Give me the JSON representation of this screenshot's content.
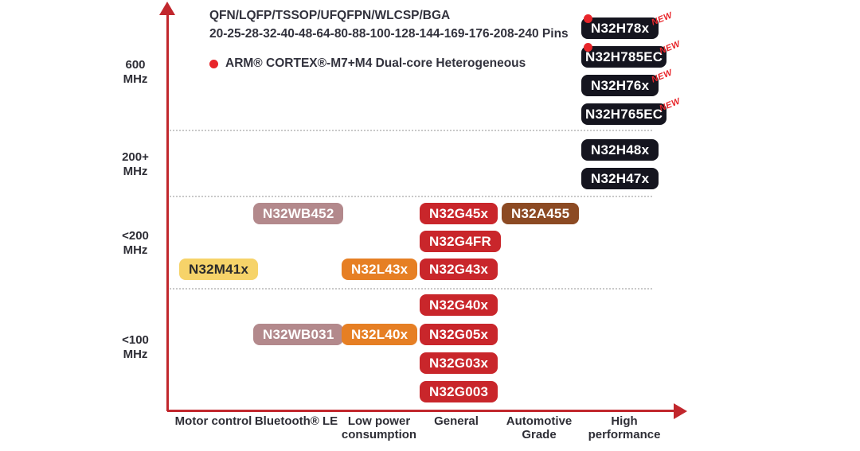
{
  "header": {
    "packages_line": "QFN/LQFP/TSSOP/UFQFPN/WLCSP/BGA",
    "pins_line": "20-25-28-32-40-48-64-80-88-100-128-144-169-176-208-240 Pins",
    "legend_label": "ARM® CORTEX®-M7+M4 Dual-core Heterogeneous"
  },
  "colors": {
    "axis": "#c1272d",
    "new_tag": "#e8252a",
    "legend_dot": "#e8252a",
    "grid": "#c9c9c9",
    "badge": {
      "dark": {
        "bg": "#15151f",
        "text": "#ffffff"
      },
      "red": {
        "bg": "#c9262b",
        "text": "#ffffff"
      },
      "orange": {
        "bg": "#e67f24",
        "text": "#ffffff"
      },
      "mauve": {
        "bg": "#b3898c",
        "text": "#ffffff"
      },
      "yellow": {
        "bg": "#f6d369",
        "text": "#2b2b2b"
      },
      "brown": {
        "bg": "#8c4a23",
        "text": "#ffffff"
      }
    }
  },
  "y_axis": {
    "bands": [
      {
        "id": "b600",
        "label": "600\nMHz"
      },
      {
        "id": "b200p",
        "label": "200+\nMHz"
      },
      {
        "id": "blt200",
        "label": "<200\nMHz"
      },
      {
        "id": "blt100",
        "label": "<100\nMHz"
      }
    ]
  },
  "x_axis": {
    "categories": [
      {
        "id": "motor",
        "label": "Motor control"
      },
      {
        "id": "bluetooth",
        "label": "Bluetooth® LE"
      },
      {
        "id": "lowpower",
        "label": "Low power\nconsumption"
      },
      {
        "id": "general",
        "label": "General"
      },
      {
        "id": "automotive",
        "label": "Automotive\nGrade"
      },
      {
        "id": "high",
        "label": "High\nperformance"
      }
    ]
  },
  "chart_data": {
    "type": "scatter",
    "x_categories": [
      "Motor control",
      "Bluetooth® LE",
      "Low power consumption",
      "General",
      "Automotive Grade",
      "High performance"
    ],
    "y_bands": [
      "600 MHz",
      "200+ MHz",
      "<200 MHz",
      "<100 MHz"
    ],
    "legend": [
      {
        "marker": "red-dot",
        "label": "ARM® CORTEX®-M7+M4 Dual-core Heterogeneous"
      }
    ],
    "points": [
      {
        "name": "N32H78x",
        "category": "High performance",
        "band": "600 MHz",
        "color": "dark",
        "new": true,
        "dual_core": true,
        "col": "high",
        "row": "h1"
      },
      {
        "name": "N32H785EC",
        "category": "High performance",
        "band": "600 MHz",
        "color": "dark",
        "new": true,
        "dual_core": true,
        "col": "high",
        "row": "h2"
      },
      {
        "name": "N32H76x",
        "category": "High performance",
        "band": "600 MHz",
        "color": "dark",
        "new": true,
        "dual_core": false,
        "col": "high",
        "row": "h3"
      },
      {
        "name": "N32H765EC",
        "category": "High performance",
        "band": "600 MHz",
        "color": "dark",
        "new": true,
        "dual_core": false,
        "col": "high",
        "row": "h4"
      },
      {
        "name": "N32H48x",
        "category": "High performance",
        "band": "200+ MHz",
        "color": "dark",
        "new": false,
        "dual_core": false,
        "col": "high",
        "row": "h5"
      },
      {
        "name": "N32H47x",
        "category": "High performance",
        "band": "200+ MHz",
        "color": "dark",
        "new": false,
        "dual_core": false,
        "col": "high",
        "row": "h6"
      },
      {
        "name": "N32WB452",
        "category": "Bluetooth® LE",
        "band": "<200 MHz",
        "color": "mauve",
        "new": false,
        "dual_core": false,
        "col": "bluetooth",
        "row": "a"
      },
      {
        "name": "N32G45x",
        "category": "General",
        "band": "<200 MHz",
        "color": "red",
        "new": false,
        "dual_core": false,
        "col": "general",
        "row": "a"
      },
      {
        "name": "N32A455",
        "category": "Automotive Grade",
        "band": "<200 MHz",
        "color": "brown",
        "new": false,
        "dual_core": false,
        "col": "automotive",
        "row": "a"
      },
      {
        "name": "N32G4FR",
        "category": "General",
        "band": "<200 MHz",
        "color": "red",
        "new": false,
        "dual_core": false,
        "col": "general",
        "row": "b"
      },
      {
        "name": "N32M41x",
        "category": "Motor control",
        "band": "<200 MHz",
        "color": "yellow",
        "new": false,
        "dual_core": false,
        "col": "motor",
        "row": "c"
      },
      {
        "name": "N32L43x",
        "category": "Low power consumption",
        "band": "<200 MHz",
        "color": "orange",
        "new": false,
        "dual_core": false,
        "col": "lowpower",
        "row": "c"
      },
      {
        "name": "N32G43x",
        "category": "General",
        "band": "<200 MHz",
        "color": "red",
        "new": false,
        "dual_core": false,
        "col": "general",
        "row": "c"
      },
      {
        "name": "N32G40x",
        "category": "General",
        "band": "<100 MHz",
        "color": "red",
        "new": false,
        "dual_core": false,
        "col": "general",
        "row": "d"
      },
      {
        "name": "N32WB031",
        "category": "Bluetooth® LE",
        "band": "<100 MHz",
        "color": "mauve",
        "new": false,
        "dual_core": false,
        "col": "bluetooth",
        "row": "e"
      },
      {
        "name": "N32L40x",
        "category": "Low power consumption",
        "band": "<100 MHz",
        "color": "orange",
        "new": false,
        "dual_core": false,
        "col": "lowpower",
        "row": "e"
      },
      {
        "name": "N32G05x",
        "category": "General",
        "band": "<100 MHz",
        "color": "red",
        "new": false,
        "dual_core": false,
        "col": "general",
        "row": "e"
      },
      {
        "name": "N32G03x",
        "category": "General",
        "band": "<100 MHz",
        "color": "red",
        "new": false,
        "dual_core": false,
        "col": "general",
        "row": "f"
      },
      {
        "name": "N32G003",
        "category": "General",
        "band": "<100 MHz",
        "color": "red",
        "new": false,
        "dual_core": false,
        "col": "general",
        "row": "g"
      }
    ],
    "new_tag_text": "NEW"
  }
}
